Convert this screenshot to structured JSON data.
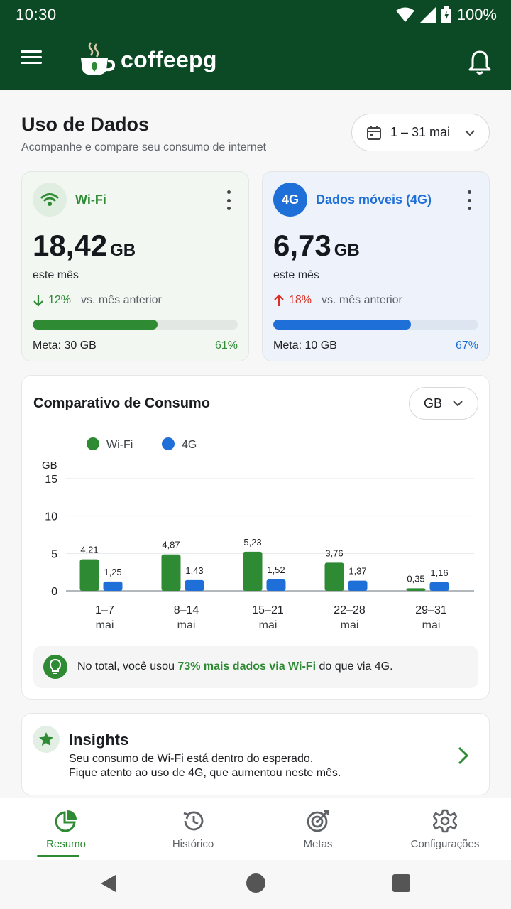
{
  "status_bar": {
    "time": "10:30",
    "battery": "100%"
  },
  "app_bar": {
    "brand": "coffeepg"
  },
  "header": {
    "title": "Uso de Dados",
    "subtitle": "Acompanhe e compare seu consumo de internet",
    "date_range": "1 – 31 mai"
  },
  "wifi_card": {
    "label": "Wi-Fi",
    "value": "18,42",
    "unit": "GB",
    "caption": "este mês",
    "delta_pct": "12%",
    "delta_text": "vs. mês anterior",
    "delta_direction": "down",
    "progress": 0.61,
    "goal": "Meta: 30 GB",
    "goal_pct": "61%",
    "color": "#2e8b34"
  },
  "mobile_card": {
    "icon_text": "4G",
    "label": "Dados móveis (4G)",
    "value": "6,73",
    "unit": "GB",
    "caption": "este mês",
    "delta_pct": "18%",
    "delta_text": "vs. mês anterior",
    "delta_direction": "up",
    "progress": 0.67,
    "goal": "Meta: 10 GB",
    "goal_pct": "67%",
    "color": "#1f6fd8"
  },
  "comparison": {
    "title": "Comparativo de Consumo",
    "unit_selector": "GB",
    "summary_prefix": "No total, você usou ",
    "summary_highlight": "73% mais dados via Wi-Fi",
    "summary_suffix": " do que via 4G."
  },
  "chart_data": {
    "type": "bar",
    "title": "",
    "ylabel": "GB",
    "xlabel": "",
    "ylim": [
      0,
      15
    ],
    "yticks": [
      0,
      5,
      10,
      15
    ],
    "grid": true,
    "legend_position": "top-left",
    "categories": [
      [
        "1–7",
        "mai"
      ],
      [
        "8–14",
        "mai"
      ],
      [
        "15–21",
        "mai"
      ],
      [
        "22–28",
        "mai"
      ],
      [
        "29–31",
        "mai"
      ]
    ],
    "series": [
      {
        "name": "Wi-Fi",
        "color": "#2e8b34",
        "values": [
          4.21,
          4.87,
          5.23,
          3.76,
          0.35
        ],
        "labels": [
          "4,21",
          "4,87",
          "5,23",
          "3,76",
          "0,35"
        ]
      },
      {
        "name": "4G",
        "color": "#1f6fd8",
        "values": [
          1.25,
          1.43,
          1.52,
          1.37,
          1.16
        ],
        "labels": [
          "1,25",
          "1,43",
          "1,52",
          "1,37",
          "1,16"
        ]
      }
    ]
  },
  "insights": {
    "title": "Insights",
    "line1": "Seu consumo de Wi-Fi está dentro do esperado.",
    "line2": "Fique atento ao uso de 4G, que aumentou neste mês."
  },
  "bottom_nav": [
    {
      "label": "Resumo",
      "icon": "pie-chart-icon",
      "active": true
    },
    {
      "label": "Histórico",
      "icon": "history-icon",
      "active": false
    },
    {
      "label": "Metas",
      "icon": "target-icon",
      "active": false
    },
    {
      "label": "Configurações",
      "icon": "gear-icon",
      "active": false
    }
  ]
}
